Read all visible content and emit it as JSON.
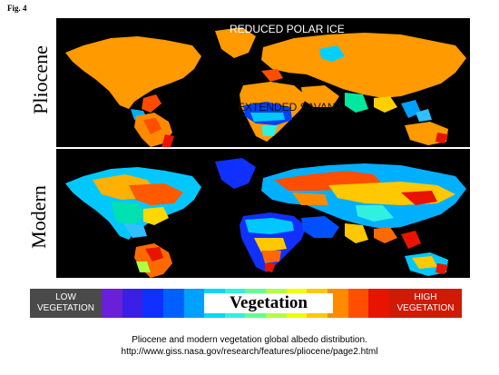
{
  "figure_label": "Fig. 4",
  "panels": [
    {
      "label": "Pliocene",
      "annotations": [
        {
          "text": "REDUCED POLAR ICE",
          "color": "#ffffff"
        },
        {
          "text": "EXTENDED SAVANA",
          "color": "#111111"
        }
      ]
    },
    {
      "label": "Modern",
      "annotations": []
    }
  ],
  "legend": {
    "title": "Vegetation",
    "low_line1": "LOW",
    "low_line2": "VEGETATION",
    "high_line1": "HIGH",
    "high_line2": "VEGETATION",
    "colors": [
      "#6a1fd8",
      "#3a1fe6",
      "#1030ff",
      "#0060ff",
      "#00a0ff",
      "#00d8ff",
      "#30f0e0",
      "#60ff90",
      "#b0ff40",
      "#f0ff00",
      "#ffc800",
      "#ff8a00",
      "#ff4e00",
      "#e81400"
    ]
  },
  "caption": {
    "line1": "Pliocene and modern vegetation global albedo distribution.",
    "line2": "http://www.giss.nasa.gov/research/features/pliocene/page2.html"
  }
}
